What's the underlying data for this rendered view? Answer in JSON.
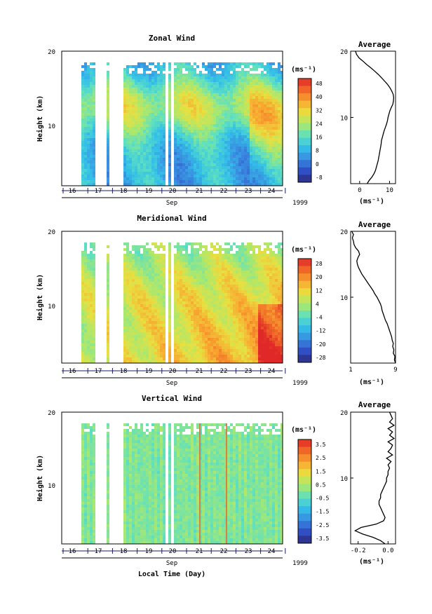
{
  "chart_data": [
    {
      "type": "heatmap",
      "title": "Zonal Wind",
      "ylabel": "Height (km)",
      "ylim": [
        0,
        20
      ],
      "yticks": [
        "20",
        "10"
      ],
      "x_day_labels": [
        "16",
        "17",
        "18",
        "19",
        "20",
        "21",
        "22",
        "23",
        "24"
      ],
      "month_label": "Sep",
      "year_label": "1999",
      "xlabel": "",
      "unit_label": "(ms⁻¹)",
      "colorbar_ticks": [
        "48",
        "40",
        "32",
        "24",
        "16",
        "8",
        "0",
        "-8"
      ],
      "colorbar_range": [
        -8,
        52
      ],
      "colorbar_colors": [
        "#2b2a7a",
        "#3050c8",
        "#3a8ae0",
        "#34c0e8",
        "#5ee0c0",
        "#a8e870",
        "#e8e040",
        "#f8a830",
        "#f06828",
        "#e02828"
      ],
      "average_profile": {
        "title": "Average",
        "xlabel": "(ms⁻¹)",
        "xticks": [
          "0",
          "10"
        ],
        "xlim": [
          -3,
          12
        ],
        "heights_km": [
          0,
          0.5,
          1,
          1.5,
          2,
          2.5,
          3,
          3.5,
          4,
          4.5,
          5,
          5.5,
          6,
          6.5,
          7,
          7.5,
          8,
          8.5,
          9,
          9.5,
          10,
          10.5,
          11,
          11.5,
          12,
          12.5,
          13,
          13.5,
          14,
          14.5,
          15,
          15.5,
          16,
          16.5,
          17,
          17.5,
          18,
          18.5,
          19,
          19.5,
          20
        ],
        "values": [
          2.5,
          3.2,
          4.1,
          4.8,
          5.3,
          5.6,
          5.9,
          6.2,
          6.4,
          6.6,
          6.8,
          7.0,
          7.2,
          7.3,
          7.6,
          7.9,
          8.2,
          8.6,
          9.0,
          9.3,
          9.5,
          9.8,
          10.1,
          10.6,
          11.1,
          11.3,
          11.4,
          11.2,
          10.7,
          10.1,
          9.3,
          8.3,
          7.3,
          6.2,
          5.0,
          3.7,
          2.3,
          1.1,
          -0.2,
          -1.0,
          -1.4
        ]
      }
    },
    {
      "type": "heatmap",
      "title": "Meridional Wind",
      "ylabel": "Height (km)",
      "ylim": [
        0,
        20
      ],
      "yticks": [
        "20",
        "10"
      ],
      "x_day_labels": [
        "16",
        "17",
        "18",
        "19",
        "20",
        "21",
        "22",
        "23",
        "24"
      ],
      "month_label": "Sep",
      "year_label": "1999",
      "xlabel": "",
      "unit_label": "(ms⁻¹)",
      "colorbar_ticks": [
        "28",
        "20",
        "12",
        "4",
        "-4",
        "-12",
        "-20",
        "-28"
      ],
      "colorbar_range": [
        -32,
        32
      ],
      "colorbar_colors": [
        "#2b2a7a",
        "#3050c8",
        "#3a8ae0",
        "#34c0e8",
        "#5ee0c0",
        "#a8e870",
        "#e8e040",
        "#f8a830",
        "#f06828",
        "#e02828"
      ],
      "average_profile": {
        "title": "Average",
        "xlabel": "(ms⁻¹)",
        "xticks": [
          "1",
          "9"
        ],
        "xlim": [
          1,
          9
        ],
        "heights_km": [
          0,
          0.5,
          1,
          1.5,
          2,
          2.5,
          3,
          3.5,
          4,
          4.5,
          5,
          5.5,
          6,
          6.5,
          7,
          7.5,
          8,
          8.5,
          9,
          9.5,
          10,
          10.5,
          11,
          11.5,
          12,
          12.5,
          13,
          13.5,
          14,
          14.5,
          15,
          15.5,
          16,
          16.5,
          17,
          17.5,
          18,
          18.5,
          19,
          19.5,
          20
        ],
        "values": [
          9.0,
          8.8,
          8.9,
          8.6,
          8.7,
          8.5,
          8.6,
          8.4,
          8.3,
          8.1,
          7.9,
          7.7,
          7.5,
          7.2,
          7.0,
          6.8,
          6.6,
          6.5,
          6.3,
          6.0,
          5.7,
          5.3,
          5.0,
          4.6,
          4.2,
          3.8,
          3.4,
          3.0,
          2.7,
          2.4,
          2.2,
          2.1,
          2.3,
          2.6,
          2.4,
          1.9,
          1.6,
          1.5,
          1.3,
          1.5,
          1.2
        ]
      }
    },
    {
      "type": "heatmap",
      "title": "Vertical Wind",
      "ylabel": "Height (km)",
      "ylim": [
        0,
        20
      ],
      "yticks": [
        "20",
        "10"
      ],
      "x_day_labels": [
        "16",
        "17",
        "18",
        "19",
        "20",
        "21",
        "22",
        "23",
        "24"
      ],
      "month_label": "Sep",
      "year_label": "1999",
      "xlabel": "Local Time (Day)",
      "unit_label": "(ms⁻¹)",
      "colorbar_ticks": [
        "3.5",
        "2.5",
        "1.5",
        "0.5",
        "-0.5",
        "-1.5",
        "-2.5",
        "-3.5"
      ],
      "colorbar_range": [
        -4,
        4
      ],
      "colorbar_colors": [
        "#2b2a7a",
        "#3050c8",
        "#3a8ae0",
        "#34c0e8",
        "#5ee0c0",
        "#a8e870",
        "#e8e040",
        "#f8a830",
        "#f06828",
        "#e02828"
      ],
      "average_profile": {
        "title": "Average",
        "xlabel": "(ms⁻¹)",
        "xticks": [
          "-0.2",
          "0.0"
        ],
        "xlim": [
          -0.25,
          0.05
        ],
        "heights_km": [
          0,
          0.5,
          1,
          1.5,
          2,
          2.5,
          3,
          3.5,
          4,
          4.5,
          5,
          5.5,
          6,
          6.5,
          7,
          7.5,
          8,
          8.5,
          9,
          9.5,
          10,
          10.5,
          11,
          11.5,
          12,
          12.5,
          13,
          13.5,
          14,
          14.5,
          15,
          15.5,
          16,
          16.5,
          17,
          17.5,
          18,
          18.5,
          19,
          19.5,
          20
        ],
        "values": [
          -0.02,
          -0.05,
          -0.1,
          -0.17,
          -0.22,
          -0.18,
          -0.08,
          -0.03,
          -0.02,
          -0.03,
          -0.04,
          -0.05,
          -0.06,
          -0.06,
          -0.05,
          -0.05,
          -0.04,
          -0.03,
          -0.02,
          -0.01,
          -0.01,
          0.0,
          0.0,
          0.01,
          0.0,
          0.02,
          -0.01,
          0.03,
          0.0,
          0.02,
          0.03,
          0.0,
          0.04,
          0.01,
          0.03,
          0.0,
          0.04,
          0.01,
          0.03,
          0.02,
          0.01
        ]
      }
    }
  ]
}
